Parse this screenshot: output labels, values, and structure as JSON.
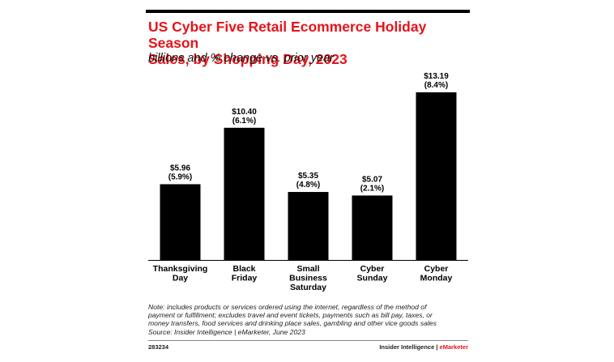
{
  "header": {
    "title": "US Cyber Five Retail Ecommerce Holiday Season\nSales, by Shopping Day, 2023",
    "subtitle": "billions and % change vs. prior year"
  },
  "chart_data": {
    "type": "bar",
    "categories": [
      "Thanksgiving\nDay",
      "Black\nFriday",
      "Small\nBusiness\nSaturday",
      "Cyber\nSunday",
      "Cyber\nMonday"
    ],
    "values": [
      5.96,
      10.4,
      5.35,
      5.07,
      13.19
    ],
    "value_labels": [
      "$5.96",
      "$10.40",
      "$5.35",
      "$5.07",
      "$13.19"
    ],
    "pct_change_labels": [
      "(5.9%)",
      "(6.1%)",
      "(4.8%)",
      "(2.1%)",
      "(8.4%)"
    ],
    "pct_change": [
      5.9,
      6.1,
      4.8,
      2.1,
      8.4
    ],
    "ylim": [
      0,
      13.19
    ],
    "bar_color": "#000000",
    "grid": false,
    "title": "US Cyber Five Retail Ecommerce Holiday Season Sales, by Shopping Day, 2023",
    "xlabel": "",
    "ylabel": ""
  },
  "footer": {
    "note": "Note: includes products or services ordered using the internet, regardless of the method of\npayment or fulfillment; excludes travel and event tickets, payments such as bill pay, taxes, or\nmoney transfers, food services and drinking place sales, gambling and other vice goods sales\nSource: Insider Intelligence | eMarketer, June 2023",
    "chart_id": "283234",
    "brand_main": "Insider Intelligence | ",
    "brand_accent": "eMarketer"
  },
  "colors": {
    "title_red": "#e4141b",
    "bars": "#000000"
  }
}
